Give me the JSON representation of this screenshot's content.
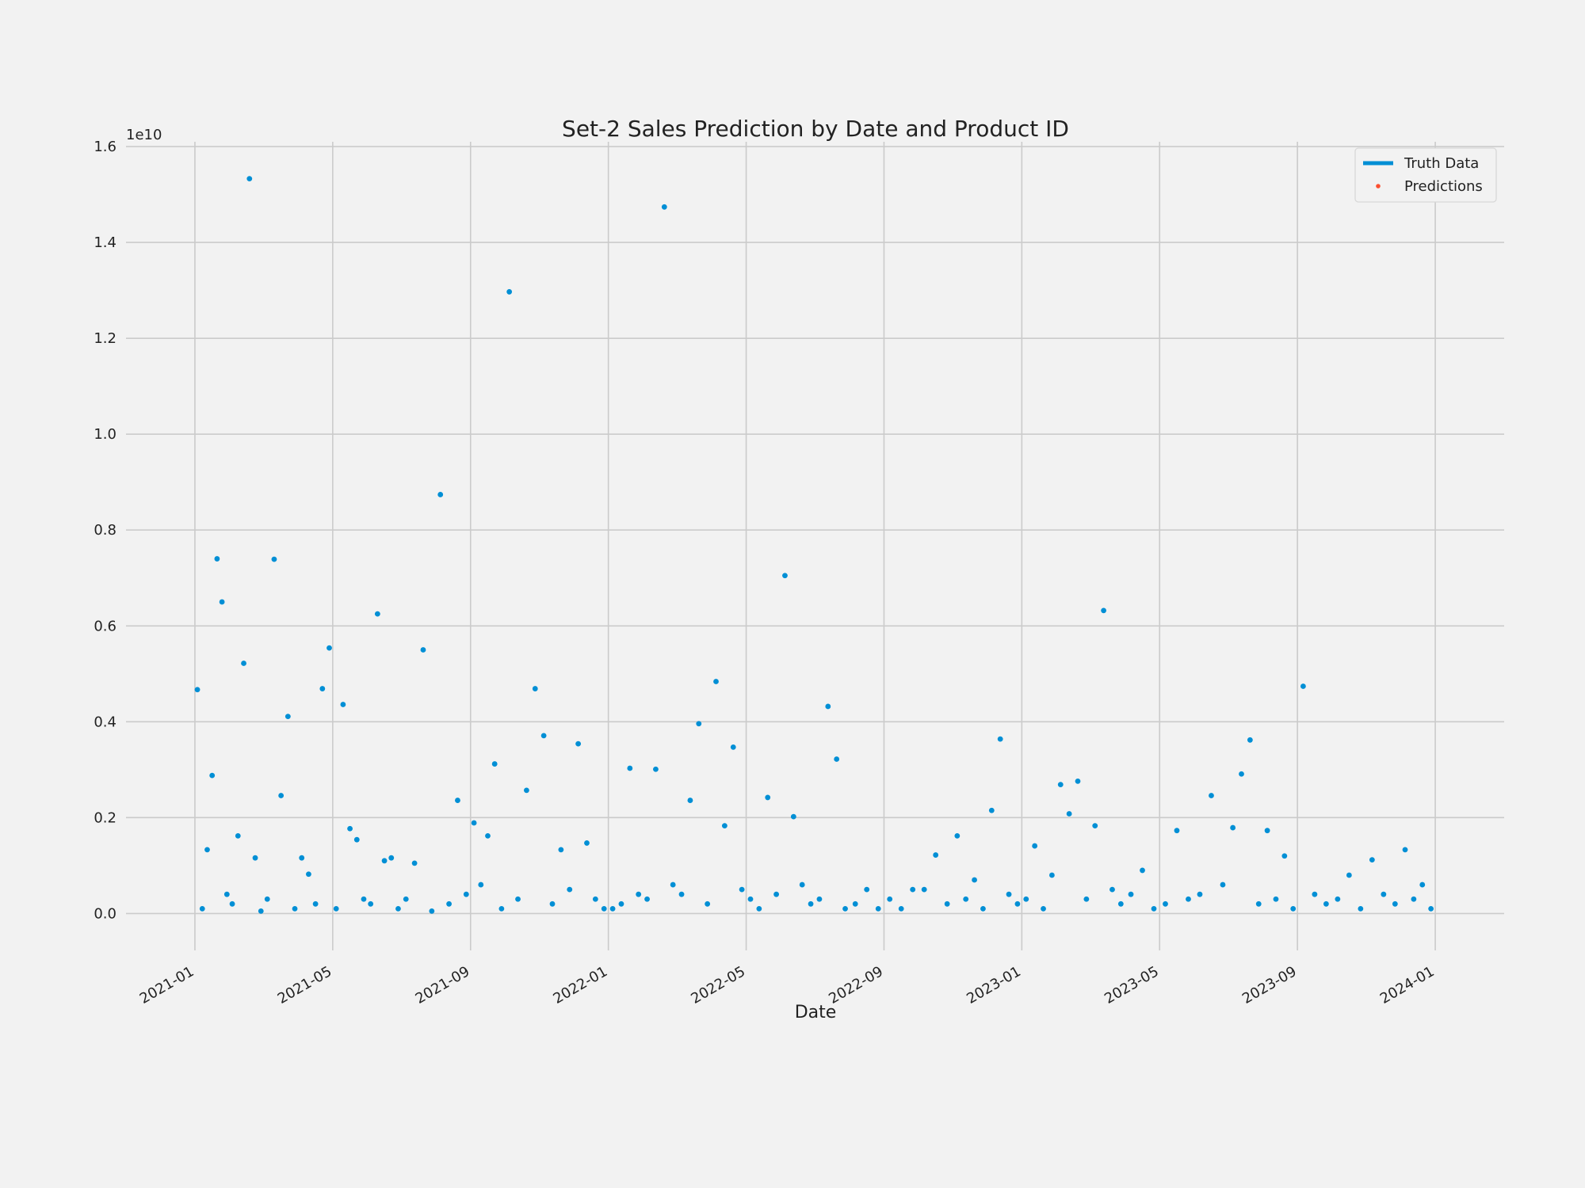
{
  "chart_data": {
    "type": "scatter",
    "title": "Set-2 Sales Prediction by Date and Product ID",
    "xlabel": "Date",
    "y_offset_text": "1e10",
    "legend": "upper right",
    "grid": true,
    "xlim": [
      "2020-11",
      "2024-03"
    ],
    "xticks": [
      "2021-01",
      "2021-05",
      "2021-09",
      "2022-01",
      "2022-05",
      "2022-09",
      "2023-01",
      "2023-05",
      "2023-09",
      "2024-01"
    ],
    "ylim": [
      -0.077,
      1.61
    ],
    "yticks": [
      {
        "value": 0,
        "label": "0.0"
      },
      0.2,
      0.4,
      0.6,
      0.8,
      {
        "value": 1,
        "label": "1.0"
      },
      1.2,
      1.4,
      1.6
    ],
    "series": [
      {
        "name": "Truth Data",
        "color": "#008fd5",
        "legend_marker": "line",
        "x": [
          "2021-01",
          "2021-01",
          "2021-01",
          "2021-01",
          "2021-01",
          "2021-01",
          "2021-01",
          "2021-02",
          "2021-02",
          "2021-02",
          "2021-02",
          "2021-02",
          "2021-02",
          "2021-03",
          "2021-03",
          "2021-03",
          "2021-03",
          "2021-03",
          "2021-04",
          "2021-04",
          "2021-04",
          "2021-04",
          "2021-04",
          "2021-05",
          "2021-05",
          "2021-05",
          "2021-05",
          "2021-05",
          "2021-06",
          "2021-06",
          "2021-06",
          "2021-06",
          "2021-06",
          "2021-07",
          "2021-07",
          "2021-07",
          "2021-07",
          "2021-08",
          "2021-08",
          "2021-08",
          "2021-08",
          "2021-09",
          "2021-09",
          "2021-09",
          "2021-09",
          "2021-09",
          "2021-10",
          "2021-10",
          "2021-10",
          "2021-10",
          "2021-11",
          "2021-11",
          "2021-11",
          "2021-11",
          "2021-12",
          "2021-12",
          "2021-12",
          "2021-12",
          "2022-01",
          "2022-01",
          "2022-01",
          "2022-01",
          "2022-02",
          "2022-02",
          "2022-02",
          "2022-02",
          "2022-03",
          "2022-03",
          "2022-03",
          "2022-03",
          "2022-04",
          "2022-04",
          "2022-04",
          "2022-04",
          "2022-05",
          "2022-05",
          "2022-05",
          "2022-05",
          "2022-06",
          "2022-06",
          "2022-06",
          "2022-06",
          "2022-07",
          "2022-07",
          "2022-07",
          "2022-07",
          "2022-08",
          "2022-08",
          "2022-08",
          "2022-09",
          "2022-09",
          "2022-09",
          "2022-10",
          "2022-10",
          "2022-10",
          "2022-11",
          "2022-11",
          "2022-11",
          "2022-11",
          "2022-12",
          "2022-12",
          "2022-12",
          "2022-12",
          "2023-01",
          "2023-01",
          "2023-01",
          "2023-01",
          "2023-02",
          "2023-02",
          "2023-02",
          "2023-02",
          "2023-03",
          "2023-03",
          "2023-03",
          "2023-03",
          "2023-04",
          "2023-04",
          "2023-04",
          "2023-05",
          "2023-05",
          "2023-05",
          "2023-06",
          "2023-06",
          "2023-06",
          "2023-07",
          "2023-07",
          "2023-07",
          "2023-07",
          "2023-08",
          "2023-08",
          "2023-08",
          "2023-08",
          "2023-09",
          "2023-09",
          "2023-09",
          "2023-10",
          "2023-10",
          "2023-10",
          "2023-11",
          "2023-11",
          "2023-11",
          "2023-12",
          "2023-12",
          "2023-12",
          "2023-12"
        ],
        "values": [
          0.467,
          0.01,
          0.133,
          0.288,
          0.74,
          0.65,
          0.04,
          0.02,
          0.162,
          0.522,
          1.533,
          0.116,
          0.005,
          0.03,
          0.739,
          0.246,
          0.411,
          0.01,
          0.116,
          0.082,
          0.02,
          0.469,
          0.554,
          0.01,
          0.436,
          0.177,
          0.154,
          0.03,
          0.02,
          0.625,
          0.11,
          0.116,
          0.01,
          0.03,
          0.105,
          0.55,
          0.005,
          0.874,
          0.02,
          0.236,
          0.04,
          0.189,
          0.06,
          0.162,
          0.312,
          0.01,
          1.297,
          0.03,
          0.257,
          0.469,
          0.371,
          0.02,
          0.133,
          0.05,
          0.354,
          0.147,
          0.03,
          0.01,
          0.01,
          0.02,
          0.303,
          0.04,
          0.03,
          0.301,
          1.474,
          0.06,
          0.04,
          0.236,
          0.396,
          0.02,
          0.484,
          0.183,
          0.347,
          0.05,
          0.03,
          0.01,
          0.242,
          0.04,
          0.705,
          0.202,
          0.06,
          0.02,
          0.03,
          0.432,
          0.322,
          0.01,
          0.02,
          0.05,
          0.01,
          0.03,
          0.01,
          0.05,
          0.05,
          0.122,
          0.02,
          0.162,
          0.03,
          0.07,
          0.01,
          0.215,
          0.364,
          0.04,
          0.02,
          0.03,
          0.141,
          0.01,
          0.08,
          0.269,
          0.208,
          0.276,
          0.03,
          0.183,
          0.632,
          0.05,
          0.02,
          0.04,
          0.09,
          0.01,
          0.02,
          0.173,
          0.03,
          0.04,
          0.246,
          0.06,
          0.179,
          0.291,
          0.362,
          0.02,
          0.173,
          0.03,
          0.12,
          0.01,
          0.474,
          0.04,
          0.02,
          0.03,
          0.08,
          0.01,
          0.112,
          0.04,
          0.02,
          0.133,
          0.03,
          0.06,
          0.01
        ]
      },
      {
        "name": "Predictions",
        "color": "#fc4f30",
        "legend_marker": "dot",
        "x": [],
        "values": []
      }
    ]
  }
}
